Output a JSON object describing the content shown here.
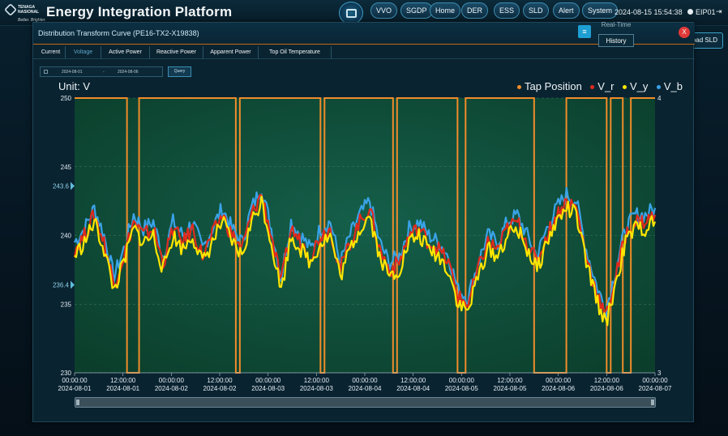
{
  "header": {
    "logo_line1": "TENAGA",
    "logo_line2": "NASIONAL",
    "logo_tagline": "Better. Brighter.",
    "app_title": "Energy Integration Platform",
    "nav": [
      "VVO",
      "SGDP",
      "Home",
      "DER",
      "ESS",
      "SLD",
      "Alert",
      "System"
    ],
    "datetime": "2024-08-15 15:54:38",
    "user": "EIP01"
  },
  "panel": {
    "title": "Distribution Transform Curve (PE16-TX2-X19838)",
    "mode_options": [
      "Real-Time",
      "History"
    ],
    "selected_mode": "History",
    "close_label": "X",
    "load_sld_label": "Load SLD",
    "tabs": [
      "Current",
      "Voltage",
      "Active Power",
      "Reactive Power",
      "Apparent Power",
      "Top Oil Temperature"
    ],
    "active_tab": "Voltage",
    "date_start": "2024-08-01",
    "date_separator": "-",
    "date_end": "2024-08-06",
    "query_label": "Query",
    "unit_label": "Unit: V"
  },
  "colors": {
    "tap": "#f08c2a",
    "v_r": "#e02a1c",
    "v_y": "#ffe600",
    "v_b": "#3aa3e8",
    "plot_bg": "#0d4a33",
    "accent": "#1e9fd3"
  },
  "chart_data": {
    "type": "line",
    "legend": [
      "Tap Position",
      "V_r",
      "V_y",
      "V_b"
    ],
    "legend_position": "top-right",
    "y_left": {
      "min": 230,
      "max": 250,
      "ticks": [
        230,
        235,
        240,
        245,
        250
      ],
      "markers": [
        243.6,
        236.4
      ]
    },
    "y_right": {
      "min": 3,
      "max": 4,
      "ticks": [
        3,
        4
      ]
    },
    "x_ticks": [
      [
        "00:00:00",
        "2024-08-01"
      ],
      [
        "12:00:00",
        "2024-08-01"
      ],
      [
        "00:00:00",
        "2024-08-02"
      ],
      [
        "12:00:00",
        "2024-08-02"
      ],
      [
        "00:00:00",
        "2024-08-03"
      ],
      [
        "12:00:00",
        "2024-08-03"
      ],
      [
        "00:00:00",
        "2024-08-04"
      ],
      [
        "12:00:00",
        "2024-08-04"
      ],
      [
        "00:00:00",
        "2024-08-05"
      ],
      [
        "12:00:00",
        "2024-08-05"
      ],
      [
        "00:00:00",
        "2024-08-06"
      ],
      [
        "12:00:00",
        "2024-08-06"
      ],
      [
        "00:00:00",
        "2024-08-07"
      ]
    ],
    "x_range_hours": [
      0,
      144
    ],
    "tap_steps": [
      [
        0,
        4
      ],
      [
        13,
        3
      ],
      [
        16,
        4
      ],
      [
        40,
        3
      ],
      [
        41,
        4
      ],
      [
        61,
        3
      ],
      [
        62,
        4
      ],
      [
        79,
        3
      ],
      [
        80,
        4
      ],
      [
        95,
        3
      ],
      [
        97,
        4
      ],
      [
        114,
        3
      ],
      [
        122,
        4
      ],
      [
        132,
        3
      ],
      [
        133,
        4
      ],
      [
        136,
        3
      ],
      [
        138,
        4
      ],
      [
        143,
        4
      ]
    ],
    "series": [
      {
        "name": "V_b",
        "values": [
          239.5,
          240.5,
          242,
          240,
          237,
          239,
          241.5,
          240.5,
          241,
          238.5,
          241,
          240,
          241,
          239,
          240.5,
          242,
          240.5,
          239.5,
          242,
          243.5,
          240.5,
          237,
          241,
          240,
          239,
          240.5,
          241,
          238,
          240,
          241.5,
          242.5,
          239.5,
          238,
          238.5,
          240.5,
          241,
          240,
          239.5,
          238.5,
          236,
          235.5,
          238,
          240,
          239.5,
          241,
          241.5,
          240,
          238.5,
          240.5,
          242,
          243,
          242.5,
          239,
          236.5,
          234.5,
          237.5,
          240.5,
          241.5,
          241.5,
          242
        ]
      },
      {
        "name": "V_r",
        "values": [
          239,
          240,
          241.5,
          239.5,
          236.5,
          238.5,
          241,
          240,
          240.5,
          238,
          240.5,
          239.5,
          240.5,
          238.5,
          240,
          241.5,
          240,
          239,
          241.5,
          243,
          240,
          236.5,
          240.5,
          239.5,
          238.5,
          240,
          240.5,
          237.5,
          239.5,
          241,
          242,
          239,
          237.5,
          238,
          240,
          240.5,
          239.5,
          239,
          238,
          235.5,
          235,
          237.5,
          239.5,
          239,
          240.5,
          241,
          239.5,
          238,
          240,
          241.5,
          242.5,
          242,
          238.5,
          236,
          234,
          237,
          240,
          241,
          241,
          241.5
        ]
      },
      {
        "name": "V_y",
        "values": [
          238.5,
          239.5,
          241,
          239,
          236,
          238,
          240.5,
          239.5,
          240,
          237.5,
          240,
          239,
          240,
          238,
          239.5,
          241,
          239.5,
          238.5,
          241,
          242.5,
          239.5,
          236,
          240,
          239,
          238,
          239.5,
          240,
          237,
          239,
          240.5,
          241.5,
          238.5,
          237,
          237.5,
          239.5,
          240,
          239,
          238.5,
          237.5,
          235,
          234.5,
          237,
          239,
          238.5,
          240,
          240.5,
          239,
          237.5,
          239.5,
          241,
          242,
          241.5,
          238,
          235.5,
          233.5,
          236.5,
          239.5,
          240.5,
          240.5,
          241
        ]
      }
    ]
  }
}
